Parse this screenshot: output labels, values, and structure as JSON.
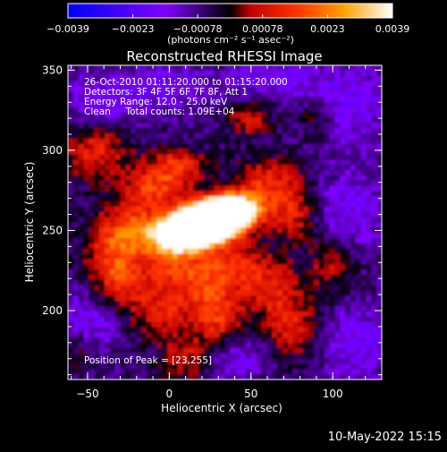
{
  "chart_data": {
    "type": "heatmap",
    "title": "Reconstructed RHESSI Image",
    "xlabel": "Heliocentric X (arcsec)",
    "ylabel": "Heliocentric Y (arcsec)",
    "xlim": [
      -62,
      130
    ],
    "ylim": [
      157,
      353
    ],
    "x_ticks": [
      -50,
      0,
      50,
      100
    ],
    "y_ticks": [
      200,
      250,
      300,
      350
    ],
    "x_tick_labels": [
      "−50",
      "0",
      "50",
      "100"
    ],
    "y_tick_labels": [
      "200",
      "250",
      "300",
      "350"
    ],
    "colorbar": {
      "range": [
        -0.0039,
        0.0039
      ],
      "tick_labels": [
        "−0.0039",
        "−0.0023",
        "−0.00078",
        "0.00078",
        "0.0023",
        "0.0039"
      ],
      "unit_label": "(photons cm⁻² s⁻¹ asec⁻²)",
      "colors": [
        "#0000ff",
        "#7f00ff",
        "#000000",
        "#ff0000",
        "#ffa000",
        "#ffffff"
      ]
    },
    "annotations": [
      "26-Oct-2010 01:11:20.000 to 01:15:20.000",
      "Detectors: 3F 4F 5F 6F 7F 8F, Att 1",
      "Energy Range: 12.0 - 25.0 keV",
      "Clean     Total counts: 1.09E+04"
    ],
    "peak_label": "Position of Peak = [23,255]",
    "peak": [
      23,
      255
    ]
  },
  "footer": {
    "date": "10-May-2022 15:15"
  }
}
